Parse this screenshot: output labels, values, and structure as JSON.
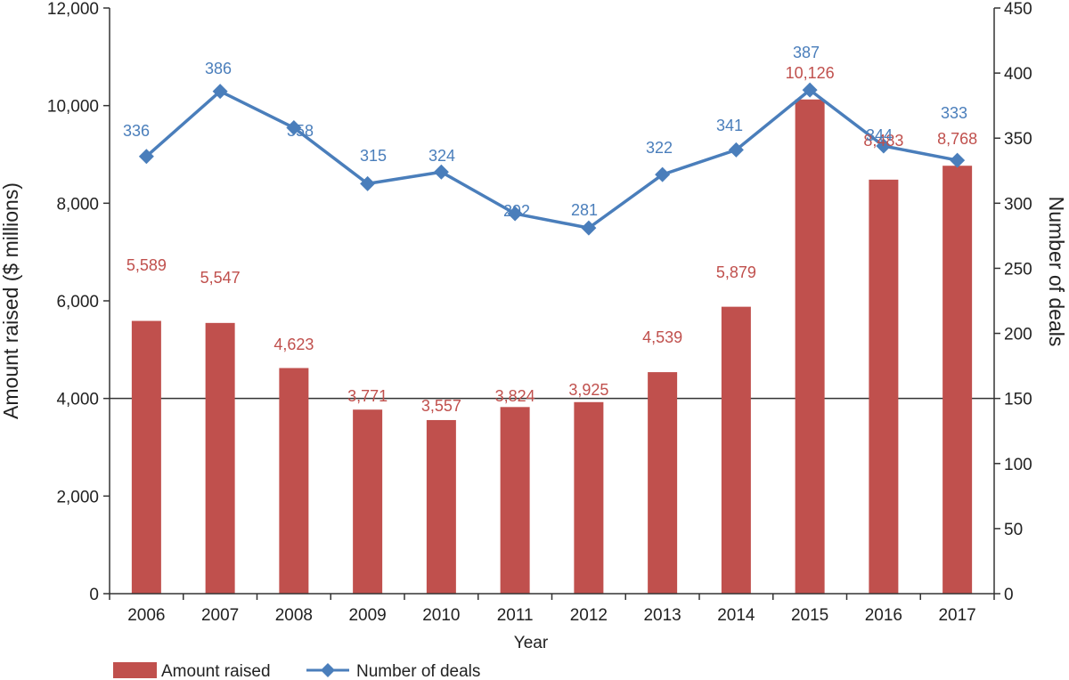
{
  "chart_data": {
    "type": "bar",
    "categories": [
      "2006",
      "2007",
      "2008",
      "2009",
      "2010",
      "2011",
      "2012",
      "2013",
      "2014",
      "2015",
      "2016",
      "2017"
    ],
    "series": [
      {
        "name": "Amount raised",
        "kind": "bar",
        "axis": "left",
        "color": "#c0504d",
        "values": [
          5589,
          5547,
          4623,
          3771,
          3557,
          3824,
          3925,
          4539,
          5879,
          10126,
          8483,
          8768
        ],
        "labels": [
          "5,589",
          "5,547",
          "4,623",
          "3,771",
          "3,557",
          "3,824",
          "3,925",
          "4,539",
          "5,879",
          "10,126",
          "8,483",
          "8,768"
        ]
      },
      {
        "name": "Number of deals",
        "kind": "line",
        "axis": "right",
        "color": "#4a7ebb",
        "marker": "diamond",
        "values": [
          336,
          386,
          358,
          315,
          324,
          292,
          281,
          322,
          341,
          387,
          344,
          333
        ],
        "labels": [
          "336",
          "386",
          "358",
          "315",
          "324",
          "292",
          "281",
          "322",
          "341",
          "387",
          "344",
          "333"
        ]
      }
    ],
    "xlabel": "Year",
    "ylabel": "Amount raised ($ millions)",
    "y2label": "Number of deals",
    "ylim": [
      0,
      12000
    ],
    "y2lim": [
      0,
      450
    ],
    "yticks": [
      "0",
      "2,000",
      "4,000",
      "6,000",
      "8,000",
      "10,000",
      "12,000"
    ],
    "y2ticks": [
      "0",
      "50",
      "100",
      "150",
      "200",
      "250",
      "300",
      "350",
      "400",
      "450"
    ],
    "reference_line_value": 4000,
    "legend_position": "bottom-left"
  }
}
